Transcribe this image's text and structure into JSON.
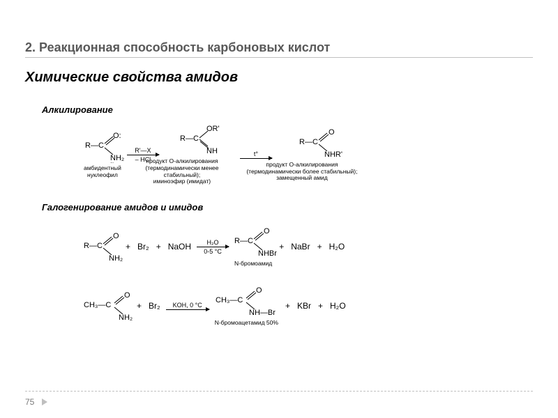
{
  "title": "2. Реакционная способность карбоновых кислот",
  "subtitle": "Химические свойства амидов",
  "sections": {
    "alkylation": {
      "label": "Алкилирование",
      "start": {
        "top": "R—C",
        "upper": "O:",
        "lower": "NH₂",
        "dots": "··",
        "caption": "амбидентный\nнуклеофил"
      },
      "arrow1": {
        "above": "R'—X",
        "below": "– HCl"
      },
      "intermediate": {
        "top": "R—C",
        "upper": "OR'",
        "lower": "NH",
        "caption": "продукт O-алкилирования\n(термодинамически менее стабильный);\nиминоэфир (имидат)"
      },
      "arrow2": {
        "above": "t°",
        "below": ""
      },
      "product": {
        "top": "R—C",
        "upper": "O",
        "lower": "NHR'",
        "caption": "продукт O-алкилирования\n(термодинамически более стабильный);\nзамещенный амид"
      }
    },
    "halogenation": {
      "label": "Галогенирование амидов и имидов",
      "row1": {
        "start": {
          "top": "R—C",
          "upper": "O",
          "lower": "NH₂"
        },
        "plus1": "+",
        "reagent1": "Br₂",
        "plus2": "+",
        "reagent2": "NaOH",
        "arrow": {
          "above": "H₂O",
          "below": "0-5 °C"
        },
        "product": {
          "top": "R—C",
          "upper": "O",
          "lower": "NHBr",
          "caption": "N-бромоамид"
        },
        "plus3": "+",
        "by1": "NaBr",
        "plus4": "+",
        "by2": "H₂O"
      },
      "row2": {
        "start": {
          "top": "CH₃—C",
          "upper": "O",
          "lower": "NH₂"
        },
        "plus1": "+",
        "reagent1": "Br₂",
        "arrow": {
          "above": "KOH, 0 °C",
          "below": ""
        },
        "product": {
          "top": "CH₃—C",
          "upper": "O",
          "lower": "NH—Br",
          "caption": "N-бромоацетамид 50%"
        },
        "plus2": "+",
        "by1": "KBr",
        "plus3": "+",
        "by2": "H₂O"
      }
    }
  },
  "page": "75",
  "colors": {
    "bg": "#ffffff",
    "title": "#595959",
    "text": "#000000",
    "rule": "#c0c0c0",
    "page": "#7a7a7a"
  }
}
